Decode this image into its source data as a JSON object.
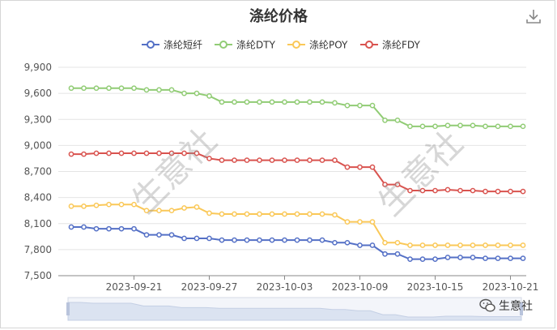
{
  "chart_data": {
    "type": "line",
    "title": "涤纶价格",
    "x": [
      "2023-09-16",
      "2023-09-17",
      "2023-09-18",
      "2023-09-19",
      "2023-09-20",
      "2023-09-21",
      "2023-09-22",
      "2023-09-23",
      "2023-09-24",
      "2023-09-25",
      "2023-09-26",
      "2023-09-27",
      "2023-09-28",
      "2023-09-29",
      "2023-09-30",
      "2023-10-01",
      "2023-10-02",
      "2023-10-03",
      "2023-10-04",
      "2023-10-05",
      "2023-10-06",
      "2023-10-07",
      "2023-10-08",
      "2023-10-09",
      "2023-10-10",
      "2023-10-11",
      "2023-10-12",
      "2023-10-13",
      "2023-10-14",
      "2023-10-15",
      "2023-10-16",
      "2023-10-17",
      "2023-10-18",
      "2023-10-19",
      "2023-10-20",
      "2023-10-21",
      "2023-10-22"
    ],
    "x_tick_labels": [
      "2023-09-21",
      "2023-09-27",
      "2023-10-03",
      "2023-10-09",
      "2023-10-15",
      "2023-10-21"
    ],
    "y_ticks": [
      7500,
      7800,
      8100,
      8400,
      8700,
      9000,
      9300,
      9600,
      9900
    ],
    "y_tick_labels": [
      "7,500",
      "7,800",
      "8,100",
      "8,400",
      "8,700",
      "9,000",
      "9,300",
      "9,600",
      "9,900"
    ],
    "ylim": [
      7500,
      9900
    ],
    "grid": true,
    "legend_position": "top-center",
    "series": [
      {
        "name": "涤纶短纤",
        "color": "#5470c6",
        "values": [
          8060,
          8060,
          8040,
          8040,
          8040,
          8040,
          7970,
          7970,
          7970,
          7930,
          7930,
          7930,
          7910,
          7910,
          7910,
          7910,
          7910,
          7910,
          7910,
          7910,
          7910,
          7880,
          7880,
          7850,
          7850,
          7750,
          7750,
          7690,
          7690,
          7690,
          7710,
          7710,
          7710,
          7700,
          7700,
          7700,
          7700
        ]
      },
      {
        "name": "涤纶DTY",
        "color": "#91cc75",
        "values": [
          9660,
          9660,
          9660,
          9660,
          9660,
          9660,
          9640,
          9640,
          9640,
          9600,
          9600,
          9570,
          9500,
          9500,
          9500,
          9500,
          9500,
          9500,
          9500,
          9500,
          9500,
          9490,
          9460,
          9460,
          9460,
          9290,
          9290,
          9220,
          9220,
          9220,
          9230,
          9230,
          9230,
          9220,
          9220,
          9220,
          9220
        ]
      },
      {
        "name": "涤纶POY",
        "color": "#fac858",
        "values": [
          8300,
          8300,
          8310,
          8320,
          8320,
          8320,
          8250,
          8250,
          8250,
          8280,
          8290,
          8220,
          8210,
          8210,
          8210,
          8210,
          8210,
          8210,
          8210,
          8210,
          8210,
          8200,
          8120,
          8120,
          8120,
          7880,
          7880,
          7850,
          7850,
          7850,
          7850,
          7850,
          7850,
          7850,
          7850,
          7850,
          7850
        ]
      },
      {
        "name": "涤纶FDY",
        "color": "#d9534f",
        "values": [
          8900,
          8900,
          8910,
          8910,
          8910,
          8910,
          8910,
          8910,
          8910,
          8910,
          8910,
          8850,
          8830,
          8830,
          8830,
          8830,
          8830,
          8830,
          8830,
          8830,
          8830,
          8830,
          8750,
          8750,
          8750,
          8550,
          8550,
          8480,
          8480,
          8480,
          8490,
          8480,
          8480,
          8470,
          8470,
          8470,
          8470
        ]
      }
    ]
  },
  "watermark_text": "生意社",
  "brand": {
    "name": "生意社",
    "icon": "wechat-icon"
  },
  "toolbar": {
    "download_icon": "download-icon"
  }
}
